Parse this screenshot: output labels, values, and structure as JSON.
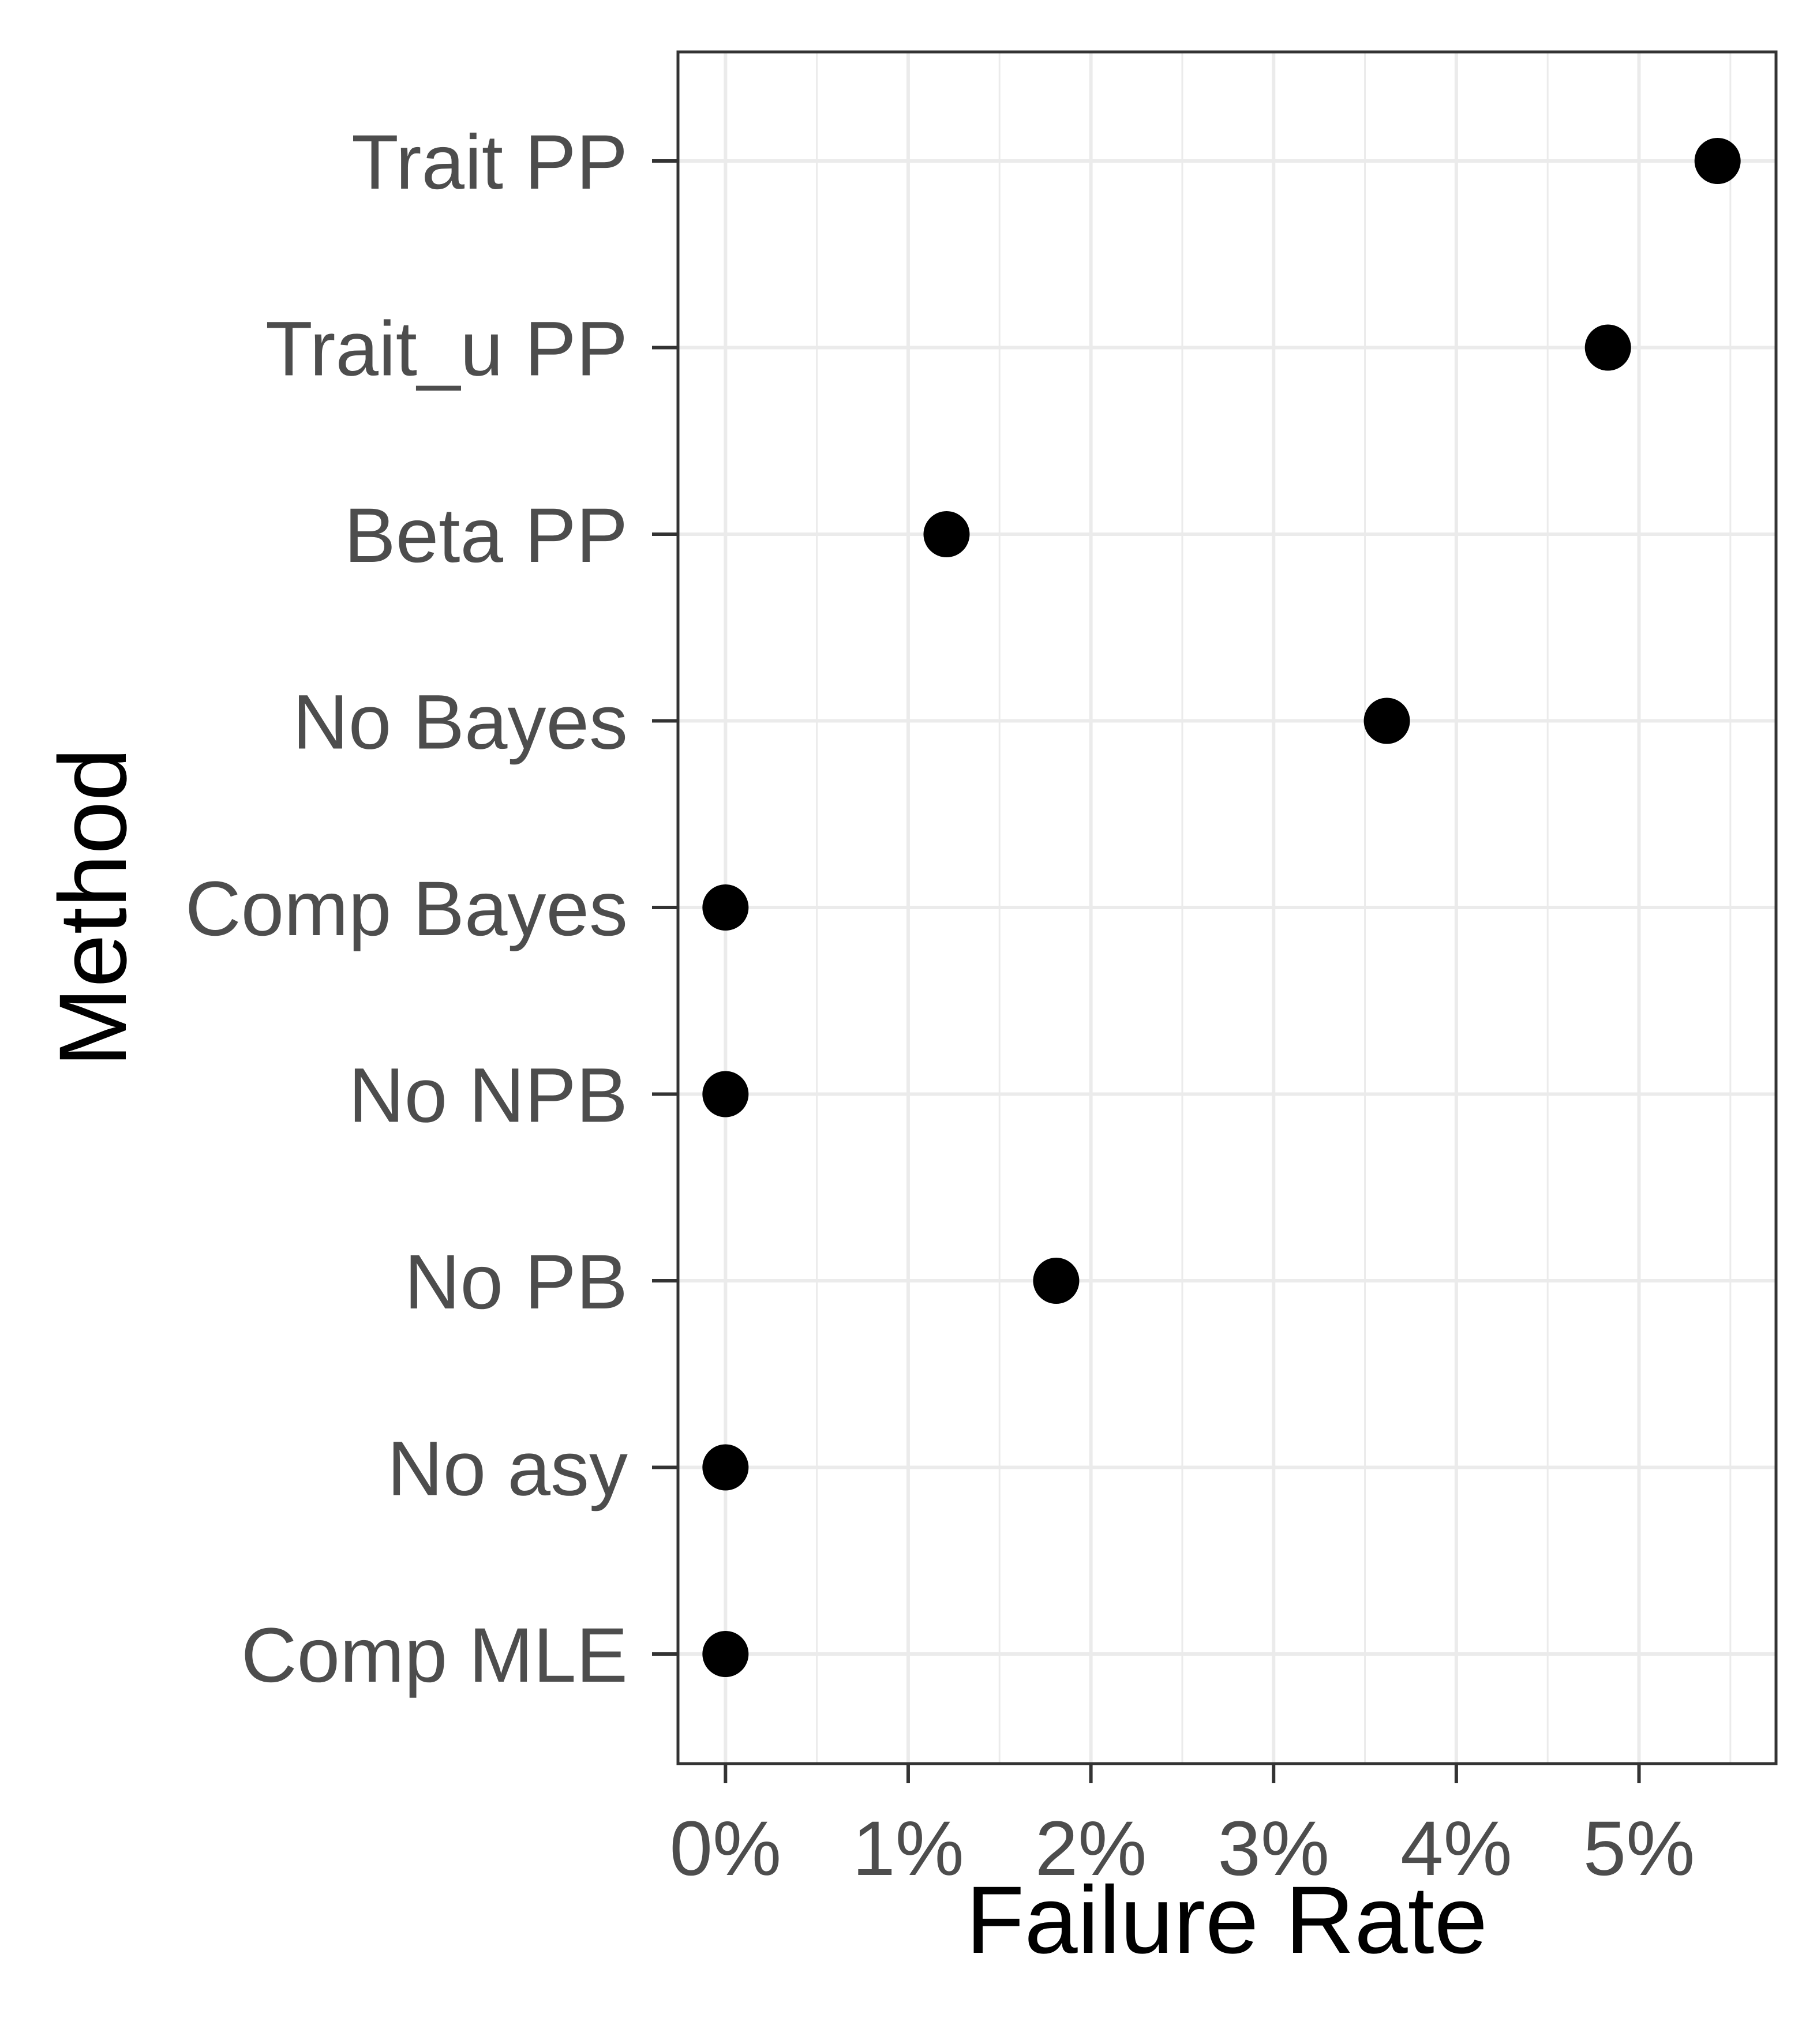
{
  "chart_data": {
    "type": "scatter",
    "title": "",
    "xlabel": "Failure Rate",
    "ylabel": "Method",
    "categories": [
      "Trait PP",
      "Trait_u PP",
      "Beta PP",
      "No Bayes",
      "Comp Bayes",
      "No NPB",
      "No PB",
      "No asy",
      "Comp MLE"
    ],
    "values": [
      5.43,
      4.83,
      1.21,
      3.62,
      0.0,
      0.0,
      1.81,
      0.0,
      0.0
    ],
    "x_ticks": [
      0,
      1,
      2,
      3,
      4,
      5
    ],
    "x_tick_labels": [
      "0%",
      "1%",
      "2%",
      "3%",
      "4%",
      "5%"
    ],
    "xlim": [
      -0.26,
      5.75
    ],
    "grid": true,
    "theme": "bw",
    "colors": {
      "point": "#000000",
      "grid": "#ebebeb",
      "panel_border": "#333333",
      "tick_text": "#4d4d4d",
      "title_text": "#000000"
    }
  }
}
